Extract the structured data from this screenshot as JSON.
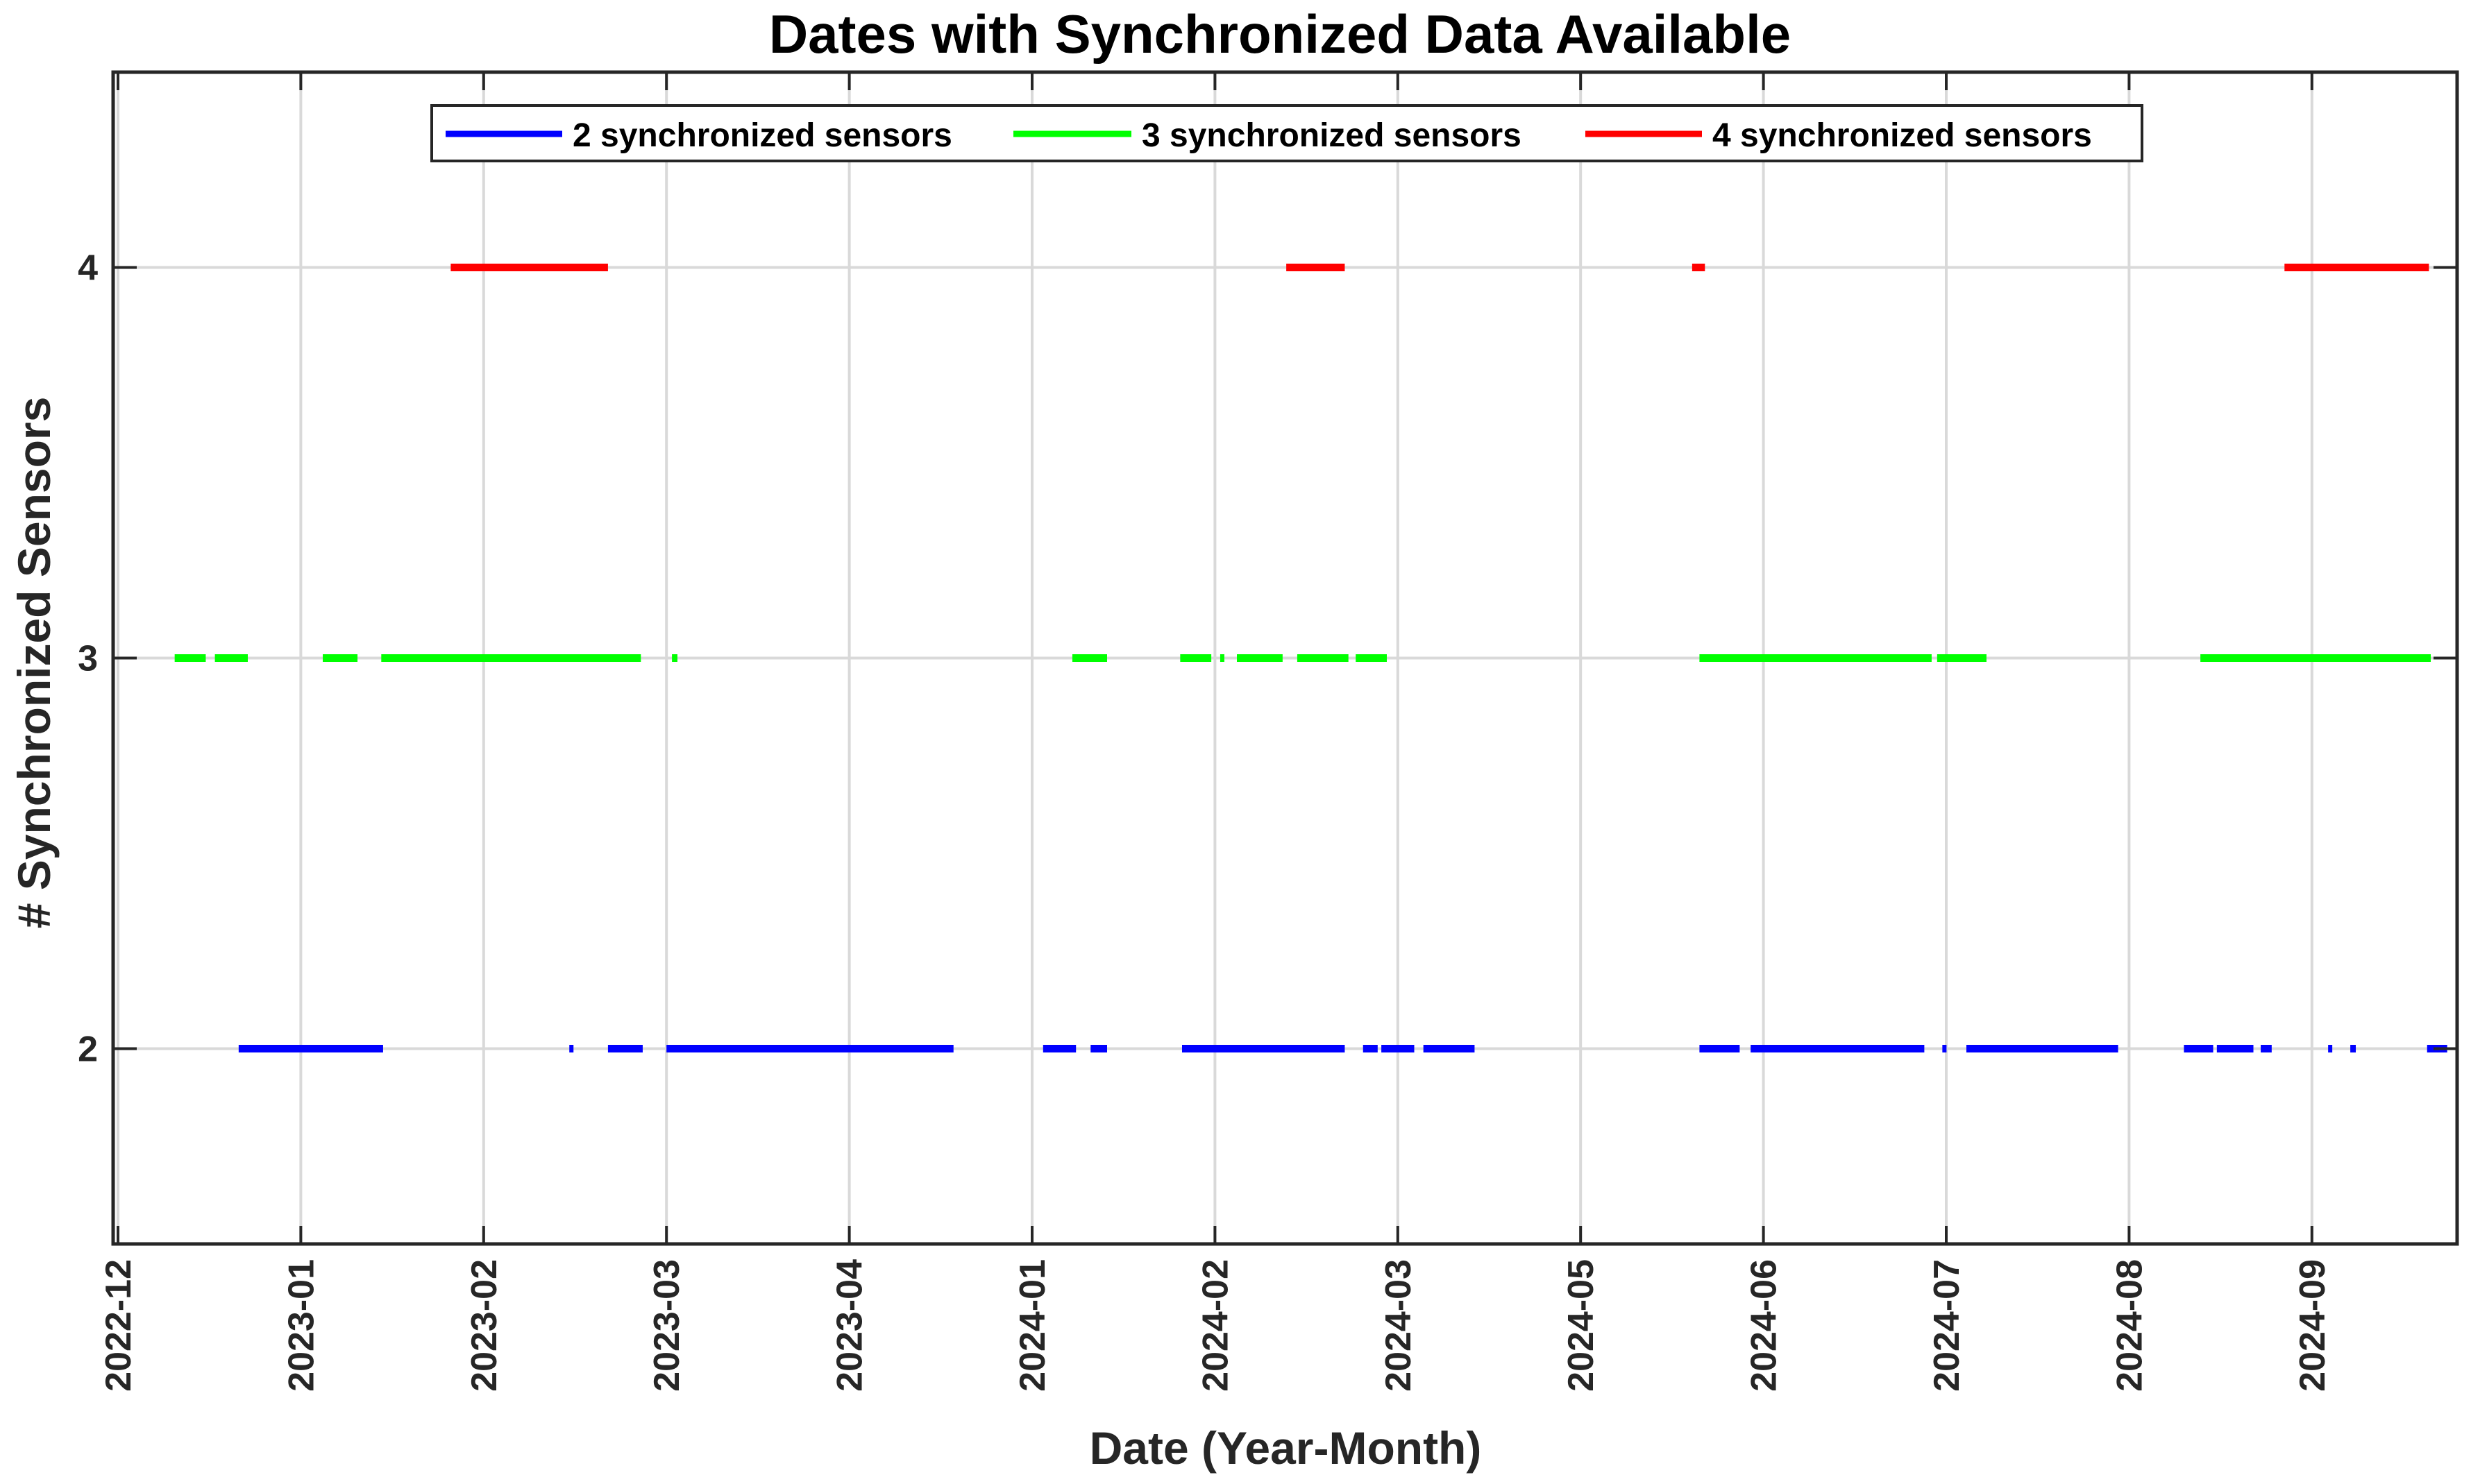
{
  "chart_data": {
    "type": "line",
    "title": "Dates with Synchronized Data Available",
    "xlabel": "Date (Year-Month)",
    "ylabel": "# Synchronized Sensors",
    "ylim": [
      1.5,
      4.5
    ],
    "y_ticks": [
      "2",
      "3",
      "4"
    ],
    "x_tick_labels": [
      "2022-12",
      "2023-01",
      "2023-02",
      "2023-03",
      "2023-04",
      "2024-01",
      "2024-02",
      "2024-03",
      "2024-05",
      "2024-06",
      "2024-07",
      "2024-08",
      "2024-09"
    ],
    "grid": true,
    "legend_position": "top",
    "series": [
      {
        "name": "2 synchronized sensors",
        "y": 2,
        "color": "#0000ff",
        "segments": [
          [
            0.66,
            1.45
          ],
          [
            2.47,
            2.49
          ],
          [
            2.68,
            2.87
          ],
          [
            3.0,
            4.57
          ],
          [
            5.06,
            5.24
          ],
          [
            5.32,
            5.41
          ],
          [
            5.82,
            6.71
          ],
          [
            6.81,
            6.89
          ],
          [
            6.91,
            7.09
          ],
          [
            7.14,
            7.42
          ],
          [
            8.65,
            8.87
          ],
          [
            8.93,
            9.88
          ],
          [
            9.98,
            10.0
          ],
          [
            10.11,
            10.94
          ],
          [
            11.3,
            11.46
          ],
          [
            11.48,
            11.68
          ],
          [
            11.72,
            11.78
          ],
          [
            12.09,
            12.11
          ],
          [
            12.21,
            12.24
          ],
          [
            12.63,
            12.74
          ]
        ]
      },
      {
        "name": "3 synchronized sensors",
        "y": 3,
        "color": "#00ff00",
        "segments": [
          [
            0.31,
            0.48
          ],
          [
            0.53,
            0.71
          ],
          [
            1.12,
            1.31
          ],
          [
            1.44,
            2.86
          ],
          [
            3.03,
            3.06
          ],
          [
            5.22,
            5.41
          ],
          [
            5.81,
            5.98
          ],
          [
            6.03,
            6.05
          ],
          [
            6.12,
            6.37
          ],
          [
            6.45,
            6.73
          ],
          [
            6.77,
            6.94
          ],
          [
            8.65,
            9.92
          ],
          [
            9.95,
            10.22
          ],
          [
            11.39,
            12.65
          ]
        ]
      },
      {
        "name": "4 synchronized sensors",
        "y": 4,
        "color": "#ff0000",
        "segments": [
          [
            1.82,
            2.68
          ],
          [
            6.39,
            6.71
          ],
          [
            8.61,
            8.68
          ],
          [
            11.85,
            12.64
          ]
        ]
      }
    ]
  }
}
